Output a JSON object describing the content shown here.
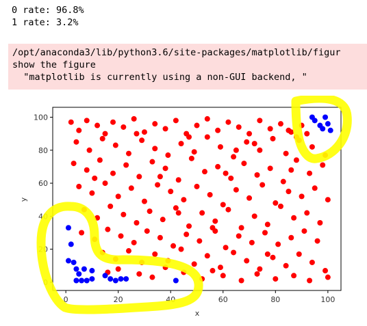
{
  "output": {
    "line1": "0 rate: 96.8%",
    "line2": "1 rate: 3.2%"
  },
  "warning": {
    "path": "/opt/anaconda3/lib/python3.6/site-packages/matplotlib/figur",
    "line2": "show the figure",
    "line3": "  \"matplotlib is currently using a non-GUI backend, \""
  },
  "chart_data": {
    "type": "scatter",
    "xlabel": "x",
    "ylabel": "y",
    "xlim": [
      -5,
      105
    ],
    "ylim": [
      -5,
      106
    ],
    "xticks": [
      "0",
      "20",
      "40",
      "60",
      "80",
      "100"
    ],
    "yticks": [
      "0",
      "20",
      "40",
      "60",
      "80",
      "100"
    ],
    "grid": false,
    "series": [
      {
        "color": "#ff0000",
        "description": "class 0 points scattered uniformly across 0-100",
        "points": [
          [
            2,
            97
          ],
          [
            5,
            92
          ],
          [
            8,
            98
          ],
          [
            12,
            95
          ],
          [
            15,
            90
          ],
          [
            18,
            97
          ],
          [
            22,
            94
          ],
          [
            26,
            99
          ],
          [
            30,
            91
          ],
          [
            34,
            96
          ],
          [
            38,
            93
          ],
          [
            42,
            98
          ],
          [
            46,
            90
          ],
          [
            50,
            95
          ],
          [
            54,
            99
          ],
          [
            58,
            92
          ],
          [
            62,
            97
          ],
          [
            66,
            94
          ],
          [
            70,
            90
          ],
          [
            74,
            98
          ],
          [
            78,
            93
          ],
          [
            82,
            96
          ],
          [
            86,
            91
          ],
          [
            4,
            85
          ],
          [
            9,
            80
          ],
          [
            14,
            87
          ],
          [
            19,
            83
          ],
          [
            24,
            78
          ],
          [
            29,
            86
          ],
          [
            34,
            81
          ],
          [
            39,
            77
          ],
          [
            44,
            84
          ],
          [
            49,
            79
          ],
          [
            54,
            88
          ],
          [
            59,
            82
          ],
          [
            64,
            76
          ],
          [
            69,
            85
          ],
          [
            74,
            80
          ],
          [
            79,
            87
          ],
          [
            84,
            78
          ],
          [
            89,
            86
          ],
          [
            94,
            82
          ],
          [
            99,
            77
          ],
          [
            3,
            72
          ],
          [
            8,
            68
          ],
          [
            13,
            74
          ],
          [
            18,
            66
          ],
          [
            23,
            71
          ],
          [
            28,
            64
          ],
          [
            33,
            73
          ],
          [
            38,
            69
          ],
          [
            43,
            62
          ],
          [
            48,
            75
          ],
          [
            53,
            67
          ],
          [
            58,
            70
          ],
          [
            63,
            63
          ],
          [
            68,
            72
          ],
          [
            73,
            65
          ],
          [
            78,
            69
          ],
          [
            83,
            61
          ],
          [
            88,
            74
          ],
          [
            93,
            66
          ],
          [
            98,
            71
          ],
          [
            5,
            58
          ],
          [
            10,
            54
          ],
          [
            15,
            60
          ],
          [
            20,
            52
          ],
          [
            25,
            57
          ],
          [
            30,
            49
          ],
          [
            35,
            59
          ],
          [
            40,
            55
          ],
          [
            45,
            50
          ],
          [
            50,
            58
          ],
          [
            55,
            53
          ],
          [
            60,
            47
          ],
          [
            65,
            56
          ],
          [
            70,
            51
          ],
          [
            75,
            59
          ],
          [
            80,
            48
          ],
          [
            85,
            55
          ],
          [
            90,
            52
          ],
          [
            95,
            57
          ],
          [
            100,
            50
          ],
          [
            7,
            44
          ],
          [
            12,
            39
          ],
          [
            17,
            46
          ],
          [
            22,
            41
          ],
          [
            27,
            36
          ],
          [
            32,
            43
          ],
          [
            37,
            38
          ],
          [
            42,
            45
          ],
          [
            47,
            34
          ],
          [
            52,
            42
          ],
          [
            57,
            37
          ],
          [
            62,
            44
          ],
          [
            67,
            33
          ],
          [
            72,
            40
          ],
          [
            77,
            35
          ],
          [
            82,
            46
          ],
          [
            87,
            39
          ],
          [
            92,
            42
          ],
          [
            97,
            36
          ],
          [
            6,
            30
          ],
          [
            11,
            26
          ],
          [
            16,
            32
          ],
          [
            21,
            28
          ],
          [
            26,
            24
          ],
          [
            31,
            31
          ],
          [
            36,
            27
          ],
          [
            41,
            22
          ],
          [
            46,
            29
          ],
          [
            51,
            25
          ],
          [
            56,
            33
          ],
          [
            61,
            21
          ],
          [
            66,
            28
          ],
          [
            71,
            24
          ],
          [
            76,
            30
          ],
          [
            81,
            23
          ],
          [
            86,
            27
          ],
          [
            91,
            31
          ],
          [
            96,
            25
          ],
          [
            14,
            18
          ],
          [
            19,
            14
          ],
          [
            24,
            19
          ],
          [
            29,
            12
          ],
          [
            34,
            17
          ],
          [
            39,
            13
          ],
          [
            44,
            20
          ],
          [
            49,
            11
          ],
          [
            54,
            16
          ],
          [
            59,
            9
          ],
          [
            64,
            18
          ],
          [
            69,
            13
          ],
          [
            74,
            8
          ],
          [
            79,
            15
          ],
          [
            84,
            10
          ],
          [
            89,
            17
          ],
          [
            94,
            12
          ],
          [
            99,
            7
          ],
          [
            28,
            5
          ],
          [
            33,
            3
          ],
          [
            45,
            6
          ],
          [
            52,
            2
          ],
          [
            60,
            4
          ],
          [
            67,
            1
          ],
          [
            73,
            5
          ],
          [
            80,
            2
          ],
          [
            87,
            4
          ],
          [
            93,
            1
          ],
          [
            100,
            3
          ],
          [
            20,
            8
          ],
          [
            16,
            6
          ],
          [
            38,
            9
          ],
          [
            56,
            7
          ],
          [
            85,
            92
          ],
          [
            90,
            95
          ],
          [
            88,
            88
          ],
          [
            92,
            90
          ],
          [
            11,
            63
          ],
          [
            36,
            64
          ],
          [
            61,
            66
          ],
          [
            86,
            68
          ],
          [
            47,
            88
          ],
          [
            72,
            84
          ],
          [
            27,
            90
          ],
          [
            57,
            31
          ],
          [
            77,
            17
          ],
          [
            43,
            42
          ],
          [
            65,
            80
          ]
        ]
      },
      {
        "color": "#0000ff",
        "description": "class 1 points clustered in the corners",
        "points": [
          [
            1,
            33
          ],
          [
            2,
            23
          ],
          [
            1,
            13
          ],
          [
            3,
            12
          ],
          [
            4,
            8
          ],
          [
            5,
            5
          ],
          [
            4,
            1
          ],
          [
            6,
            1
          ],
          [
            8,
            1
          ],
          [
            10,
            7
          ],
          [
            7,
            8
          ],
          [
            10,
            2
          ],
          [
            15,
            4
          ],
          [
            17,
            2
          ],
          [
            19,
            1
          ],
          [
            21,
            2
          ],
          [
            23,
            2
          ],
          [
            42,
            1
          ],
          [
            95,
            98
          ],
          [
            97,
            95
          ],
          [
            99,
            100
          ],
          [
            100,
            96
          ],
          [
            101,
            92
          ],
          [
            98,
            93
          ],
          [
            94,
            100
          ]
        ]
      }
    ]
  },
  "annotations": {
    "highlight_color": "#ffff00"
  }
}
